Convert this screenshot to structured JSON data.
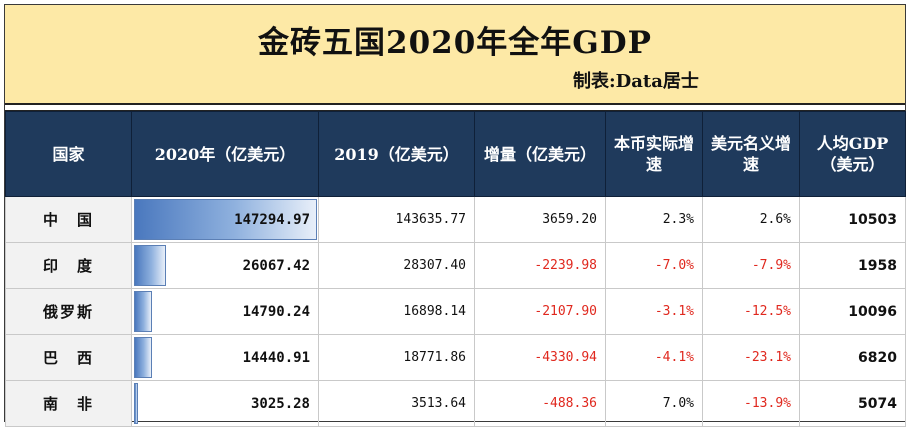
{
  "title": "金砖五国2020年全年GDP",
  "credit": "制表:Data居士",
  "headers": [
    "国家",
    "2020年（亿美元）",
    "2019（亿美元）",
    "增量（亿美元）",
    "本币实际增速",
    "美元名义增速",
    "人均GDP（美元）"
  ],
  "rows": [
    {
      "country": "中　国",
      "gdp2020": "147294.97",
      "gdp2020_share": 1.0,
      "gdp2019": "143635.77",
      "delta": "3659.20",
      "real_growth": "2.3%",
      "nominal_growth": "2.6%",
      "per_capita": "10503"
    },
    {
      "country": "印　度",
      "gdp2020": "26067.42",
      "gdp2020_share": 0.177,
      "gdp2019": "28307.40",
      "delta": "-2239.98",
      "real_growth": "-7.0%",
      "nominal_growth": "-7.9%",
      "per_capita": "1958"
    },
    {
      "country": "俄罗斯",
      "gdp2020": "14790.24",
      "gdp2020_share": 0.1,
      "gdp2019": "16898.14",
      "delta": "-2107.90",
      "real_growth": "-3.1%",
      "nominal_growth": "-12.5%",
      "per_capita": "10096"
    },
    {
      "country": "巴　西",
      "gdp2020": "14440.91",
      "gdp2020_share": 0.098,
      "gdp2019": "18771.86",
      "delta": "-4330.94",
      "real_growth": "-4.1%",
      "nominal_growth": "-23.1%",
      "per_capita": "6820"
    },
    {
      "country": "南　非",
      "gdp2020": "3025.28",
      "gdp2020_share": 0.021,
      "gdp2019": "3513.64",
      "delta": "-488.36",
      "real_growth": "7.0%",
      "nominal_growth": "-13.9%",
      "per_capita": "5074"
    }
  ],
  "colors": {
    "title_bg": "#fde9a6",
    "header_bg": "#1f3a5c",
    "negative": "#e0281e",
    "bar": "#4a78be"
  }
}
